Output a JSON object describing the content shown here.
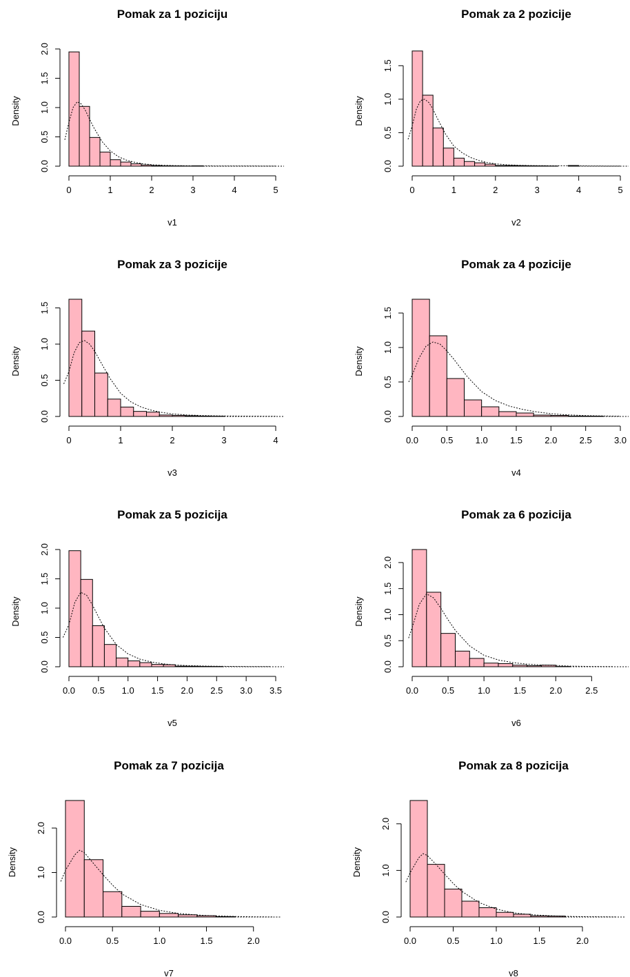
{
  "colors": {
    "bar_fill": "#FFB6C1",
    "bar_stroke": "#000000",
    "curve": "#000000",
    "axis": "#000000"
  },
  "chart_data": [
    {
      "type": "bar",
      "title": "Pomak za 1 poziciju",
      "xlabel": "v1",
      "ylabel": "Density",
      "xlim": [
        0,
        5
      ],
      "ylim": [
        0,
        2
      ],
      "x_ticks": [
        0,
        1,
        2,
        3,
        4,
        5
      ],
      "x_tick_labels": [
        "0",
        "1",
        "2",
        "3",
        "4",
        "5"
      ],
      "y_ticks": [
        0,
        0.5,
        1,
        1.5,
        2
      ],
      "y_tick_labels": [
        "0.0",
        "0.5",
        "1.0",
        "1.5",
        "2.0"
      ],
      "bin_edges": [
        0,
        0.25,
        0.5,
        0.75,
        1,
        1.25,
        1.5,
        1.75,
        2,
        2.25,
        2.5,
        2.75,
        3,
        3.25
      ],
      "values": [
        1.95,
        1.02,
        0.49,
        0.24,
        0.11,
        0.07,
        0.04,
        0.02,
        0.01,
        0.005,
        0.004,
        0.002,
        0.006
      ],
      "density_curve": {
        "x": [
          -0.1,
          0,
          0.1,
          0.2,
          0.3,
          0.4,
          0.5,
          0.6,
          0.8,
          1.0,
          1.2,
          1.4,
          1.6,
          1.8,
          2.0,
          2.3,
          2.6,
          3.0,
          3.5,
          4.0,
          4.5,
          5.0
        ],
        "y": [
          0.45,
          0.75,
          1.0,
          1.1,
          1.06,
          0.95,
          0.8,
          0.66,
          0.42,
          0.26,
          0.16,
          0.1,
          0.065,
          0.04,
          0.025,
          0.015,
          0.01,
          0.006,
          0.004,
          0.003,
          0.002,
          0.001
        ]
      }
    },
    {
      "type": "bar",
      "title": "Pomak za 2 pozicije",
      "xlabel": "v2",
      "ylabel": "Density",
      "xlim": [
        0,
        5
      ],
      "ylim": [
        0,
        1.75
      ],
      "x_ticks": [
        0,
        1,
        2,
        3,
        4,
        5
      ],
      "x_tick_labels": [
        "0",
        "1",
        "2",
        "3",
        "4",
        "5"
      ],
      "y_ticks": [
        0,
        0.5,
        1,
        1.5
      ],
      "y_tick_labels": [
        "0.0",
        "0.5",
        "1.0",
        "1.5"
      ],
      "bin_edges": [
        0,
        0.25,
        0.5,
        0.75,
        1,
        1.25,
        1.5,
        1.75,
        2,
        2.25,
        2.5,
        2.75,
        3,
        3.25,
        3.5,
        3.75,
        4
      ],
      "values": [
        1.72,
        1.06,
        0.57,
        0.27,
        0.12,
        0.07,
        0.05,
        0.03,
        0.01,
        0.01,
        0.008,
        0.005,
        0.004,
        0.002,
        0,
        0.01
      ],
      "density_curve": {
        "x": [
          -0.1,
          0,
          0.1,
          0.2,
          0.3,
          0.4,
          0.5,
          0.6,
          0.8,
          1.0,
          1.2,
          1.4,
          1.6,
          1.8,
          2.0,
          2.3,
          2.6,
          3.0,
          3.5,
          4.0,
          4.5,
          5.0
        ],
        "y": [
          0.4,
          0.6,
          0.85,
          0.98,
          1.0,
          0.95,
          0.85,
          0.72,
          0.48,
          0.3,
          0.2,
          0.13,
          0.085,
          0.055,
          0.035,
          0.02,
          0.012,
          0.008,
          0.005,
          0.004,
          0.002,
          0.001
        ]
      }
    },
    {
      "type": "bar",
      "title": "Pomak za 3 pozicije",
      "xlabel": "v3",
      "ylabel": "Density",
      "xlim": [
        0,
        4
      ],
      "ylim": [
        0,
        1.62
      ],
      "x_ticks": [
        0,
        1,
        2,
        3,
        4
      ],
      "x_tick_labels": [
        "0",
        "1",
        "2",
        "3",
        "4"
      ],
      "y_ticks": [
        0,
        0.5,
        1,
        1.5
      ],
      "y_tick_labels": [
        "0.0",
        "0.5",
        "1.0",
        "1.5"
      ],
      "bin_edges": [
        0,
        0.25,
        0.5,
        0.75,
        1,
        1.25,
        1.5,
        1.75,
        2,
        2.25,
        2.5,
        2.75,
        3
      ],
      "values": [
        1.62,
        1.18,
        0.6,
        0.24,
        0.13,
        0.07,
        0.06,
        0.02,
        0.015,
        0.01,
        0.005,
        0.003
      ],
      "density_curve": {
        "x": [
          -0.1,
          0,
          0.1,
          0.2,
          0.3,
          0.4,
          0.5,
          0.6,
          0.8,
          1.0,
          1.2,
          1.4,
          1.6,
          1.8,
          2.0,
          2.3,
          2.6,
          3.0,
          3.5,
          4.0
        ],
        "y": [
          0.45,
          0.62,
          0.88,
          1.02,
          1.05,
          1.0,
          0.9,
          0.77,
          0.52,
          0.32,
          0.2,
          0.13,
          0.085,
          0.055,
          0.035,
          0.02,
          0.012,
          0.007,
          0.004,
          0.002
        ]
      }
    },
    {
      "type": "bar",
      "title": "Pomak za 4 pozicije",
      "xlabel": "v4",
      "ylabel": "Density",
      "xlim": [
        0,
        3
      ],
      "ylim": [
        0,
        1.7
      ],
      "x_ticks": [
        0,
        0.5,
        1,
        1.5,
        2,
        2.5,
        3
      ],
      "x_tick_labels": [
        "0.0",
        "0.5",
        "1.0",
        "1.5",
        "2.0",
        "2.5",
        "3.0"
      ],
      "y_ticks": [
        0,
        0.5,
        1,
        1.5
      ],
      "y_tick_labels": [
        "0.0",
        "0.5",
        "1.0",
        "1.5"
      ],
      "bin_edges": [
        0,
        0.25,
        0.5,
        0.75,
        1,
        1.25,
        1.5,
        1.75,
        2,
        2.25,
        2.5,
        2.75
      ],
      "values": [
        1.7,
        1.17,
        0.55,
        0.24,
        0.14,
        0.07,
        0.05,
        0.02,
        0.015,
        0.006,
        0.005
      ],
      "density_curve": {
        "x": [
          -0.05,
          0,
          0.1,
          0.2,
          0.3,
          0.4,
          0.5,
          0.6,
          0.8,
          1.0,
          1.2,
          1.4,
          1.6,
          1.8,
          2.0,
          2.2,
          2.5,
          2.8,
          3.0
        ],
        "y": [
          0.5,
          0.6,
          0.85,
          1.02,
          1.08,
          1.05,
          0.95,
          0.83,
          0.57,
          0.36,
          0.23,
          0.15,
          0.1,
          0.065,
          0.04,
          0.025,
          0.012,
          0.006,
          0.003
        ]
      }
    },
    {
      "type": "bar",
      "title": "Pomak za 5 pozicija",
      "xlabel": "v5",
      "ylabel": "Density",
      "xlim": [
        0,
        3.5
      ],
      "ylim": [
        0,
        2
      ],
      "x_ticks": [
        0,
        0.5,
        1,
        1.5,
        2,
        2.5,
        3,
        3.5
      ],
      "x_tick_labels": [
        "0.0",
        "0.5",
        "1.0",
        "1.5",
        "2.0",
        "2.5",
        "3.0",
        "3.5"
      ],
      "y_ticks": [
        0,
        0.5,
        1,
        1.5,
        2
      ],
      "y_tick_labels": [
        "0.0",
        "0.5",
        "1.0",
        "1.5",
        "2.0"
      ],
      "bin_edges": [
        0,
        0.2,
        0.4,
        0.6,
        0.8,
        1,
        1.2,
        1.4,
        1.6,
        1.8,
        2,
        2.2,
        2.4,
        2.6
      ],
      "values": [
        1.98,
        1.49,
        0.7,
        0.38,
        0.15,
        0.1,
        0.07,
        0.04,
        0.035,
        0.01,
        0.008,
        0.005,
        0.004
      ],
      "density_curve": {
        "x": [
          -0.1,
          0,
          0.1,
          0.2,
          0.3,
          0.4,
          0.5,
          0.6,
          0.8,
          1.0,
          1.2,
          1.4,
          1.6,
          1.8,
          2.0,
          2.3,
          2.6,
          3.0,
          3.4
        ],
        "y": [
          0.5,
          0.72,
          1.1,
          1.27,
          1.22,
          1.05,
          0.85,
          0.66,
          0.38,
          0.22,
          0.13,
          0.08,
          0.05,
          0.03,
          0.02,
          0.012,
          0.007,
          0.004,
          0.002
        ]
      }
    },
    {
      "type": "bar",
      "title": "Pomak za 6 pozicija",
      "xlabel": "v6",
      "ylabel": "Density",
      "xlim": [
        0,
        2.9
      ],
      "ylim": [
        0,
        2.25
      ],
      "x_ticks": [
        0,
        0.5,
        1,
        1.5,
        2,
        2.5
      ],
      "x_tick_labels": [
        "0.0",
        "0.5",
        "1.0",
        "1.5",
        "2.0",
        "2.5"
      ],
      "y_ticks": [
        0,
        0.5,
        1,
        1.5,
        2
      ],
      "y_tick_labels": [
        "0.0",
        "0.5",
        "1.0",
        "1.5",
        "2.0"
      ],
      "bin_edges": [
        0,
        0.2,
        0.4,
        0.6,
        0.8,
        1,
        1.2,
        1.4,
        1.6,
        1.8,
        2,
        2.2
      ],
      "values": [
        2.25,
        1.43,
        0.64,
        0.3,
        0.16,
        0.07,
        0.06,
        0.03,
        0.02,
        0.03,
        0.005
      ],
      "density_curve": {
        "x": [
          -0.05,
          0,
          0.1,
          0.2,
          0.3,
          0.4,
          0.5,
          0.6,
          0.8,
          1.0,
          1.2,
          1.4,
          1.6,
          1.8,
          2.0,
          2.2,
          2.5,
          2.8
        ],
        "y": [
          0.55,
          0.75,
          1.2,
          1.4,
          1.32,
          1.12,
          0.9,
          0.7,
          0.4,
          0.22,
          0.13,
          0.08,
          0.05,
          0.035,
          0.025,
          0.012,
          0.005,
          0.002
        ]
      }
    },
    {
      "type": "bar",
      "title": "Pomak za 7 pozicija",
      "xlabel": "v7",
      "ylabel": "Density",
      "xlim": [
        0,
        2.2
      ],
      "ylim": [
        0,
        2.62
      ],
      "x_ticks": [
        0,
        0.5,
        1,
        1.5,
        2
      ],
      "x_tick_labels": [
        "0.0",
        "0.5",
        "1.0",
        "1.5",
        "2.0"
      ],
      "y_ticks": [
        0,
        1,
        2
      ],
      "y_tick_labels": [
        "0.0",
        "1.0",
        "2.0"
      ],
      "bin_edges": [
        0,
        0.2,
        0.4,
        0.6,
        0.8,
        1,
        1.2,
        1.4,
        1.6,
        1.8
      ],
      "values": [
        2.62,
        1.29,
        0.57,
        0.24,
        0.13,
        0.08,
        0.05,
        0.03,
        0.01
      ],
      "density_curve": {
        "x": [
          -0.05,
          0,
          0.1,
          0.15,
          0.2,
          0.3,
          0.4,
          0.5,
          0.6,
          0.8,
          1.0,
          1.2,
          1.4,
          1.6,
          1.8,
          2.0,
          2.2
        ],
        "y": [
          0.8,
          1.05,
          1.4,
          1.5,
          1.45,
          1.2,
          0.95,
          0.72,
          0.52,
          0.28,
          0.15,
          0.08,
          0.045,
          0.025,
          0.012,
          0.005,
          0.002
        ]
      }
    },
    {
      "type": "bar",
      "title": "Pomak za 8 pozicija",
      "xlabel": "v8",
      "ylabel": "Density",
      "xlim": [
        0,
        2.4
      ],
      "ylim": [
        0,
        2.5
      ],
      "x_ticks": [
        0,
        0.5,
        1,
        1.5,
        2
      ],
      "x_tick_labels": [
        "0.0",
        "0.5",
        "1.0",
        "1.5",
        "2.0"
      ],
      "y_ticks": [
        0,
        1,
        2
      ],
      "y_tick_labels": [
        "0.0",
        "1.0",
        "2.0"
      ],
      "bin_edges": [
        0,
        0.2,
        0.4,
        0.6,
        0.8,
        1,
        1.2,
        1.4,
        1.6,
        1.8
      ],
      "values": [
        2.5,
        1.13,
        0.6,
        0.34,
        0.2,
        0.1,
        0.06,
        0.025,
        0.02
      ],
      "density_curve": {
        "x": [
          -0.05,
          0,
          0.1,
          0.15,
          0.2,
          0.3,
          0.4,
          0.5,
          0.6,
          0.8,
          1.0,
          1.2,
          1.4,
          1.6,
          1.8,
          2.0,
          2.2,
          2.4
        ],
        "y": [
          0.75,
          0.95,
          1.27,
          1.36,
          1.32,
          1.13,
          0.92,
          0.72,
          0.55,
          0.31,
          0.17,
          0.09,
          0.05,
          0.03,
          0.015,
          0.008,
          0.004,
          0.002
        ]
      }
    }
  ]
}
